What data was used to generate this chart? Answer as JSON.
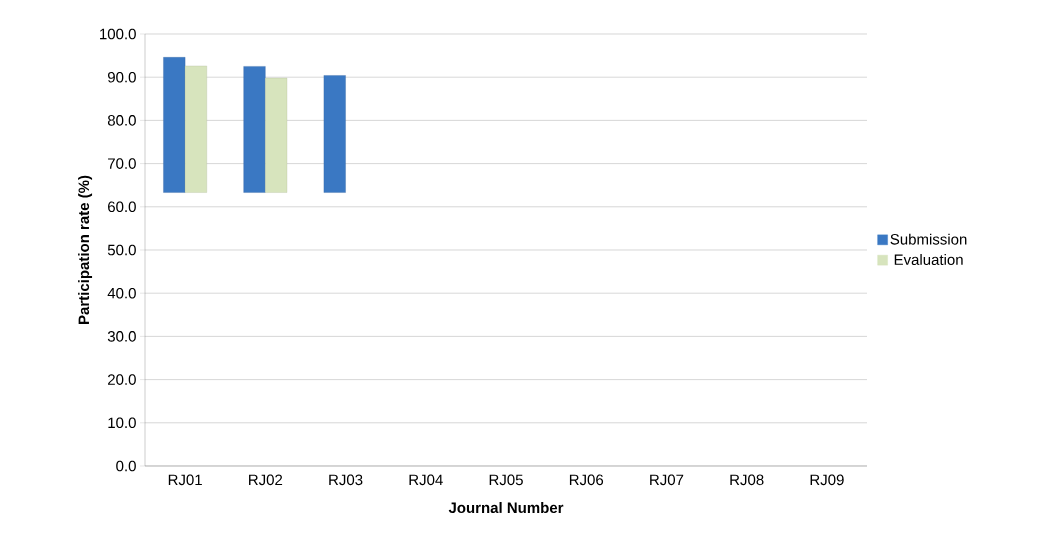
{
  "chart_data": {
    "type": "bar",
    "xlabel": "Journal Number",
    "ylabel": "Participation rate (%)",
    "categories": [
      "RJ01",
      "RJ02",
      "RJ03",
      "RJ04",
      "RJ05",
      "RJ06",
      "RJ07",
      "RJ08",
      "RJ09"
    ],
    "series": [
      {
        "name": "Submission",
        "color": "#3a78c3",
        "base": [
          63.3,
          63.3,
          63.3,
          null,
          null,
          null,
          null,
          null,
          null
        ],
        "values": [
          31.3,
          29.2,
          27.1,
          null,
          null,
          null,
          null,
          null,
          null
        ]
      },
      {
        "name": "Evaluation",
        "color": "#d7e4bd",
        "base": [
          63.3,
          63.3,
          null,
          null,
          null,
          null,
          null,
          null,
          null
        ],
        "values": [
          29.3,
          26.5,
          null,
          null,
          null,
          null,
          null,
          null,
          null
        ]
      }
    ],
    "ylim": [
      0,
      100
    ],
    "yticks": [
      {
        "value": 0,
        "label": "0.0"
      },
      {
        "value": 10,
        "label": "10.0"
      },
      {
        "value": 20,
        "label": "20.0"
      },
      {
        "value": 30,
        "label": "30.0"
      },
      {
        "value": 40,
        "label": "40.0"
      },
      {
        "value": 50,
        "label": "50.0"
      },
      {
        "value": 60,
        "label": "60.0"
      },
      {
        "value": 70,
        "label": "70.0"
      },
      {
        "value": 80,
        "label": "80.0"
      },
      {
        "value": 90,
        "label": "90.0"
      },
      {
        "value": 100,
        "label": "100.0"
      }
    ],
    "grid": "y",
    "legend": "right"
  }
}
